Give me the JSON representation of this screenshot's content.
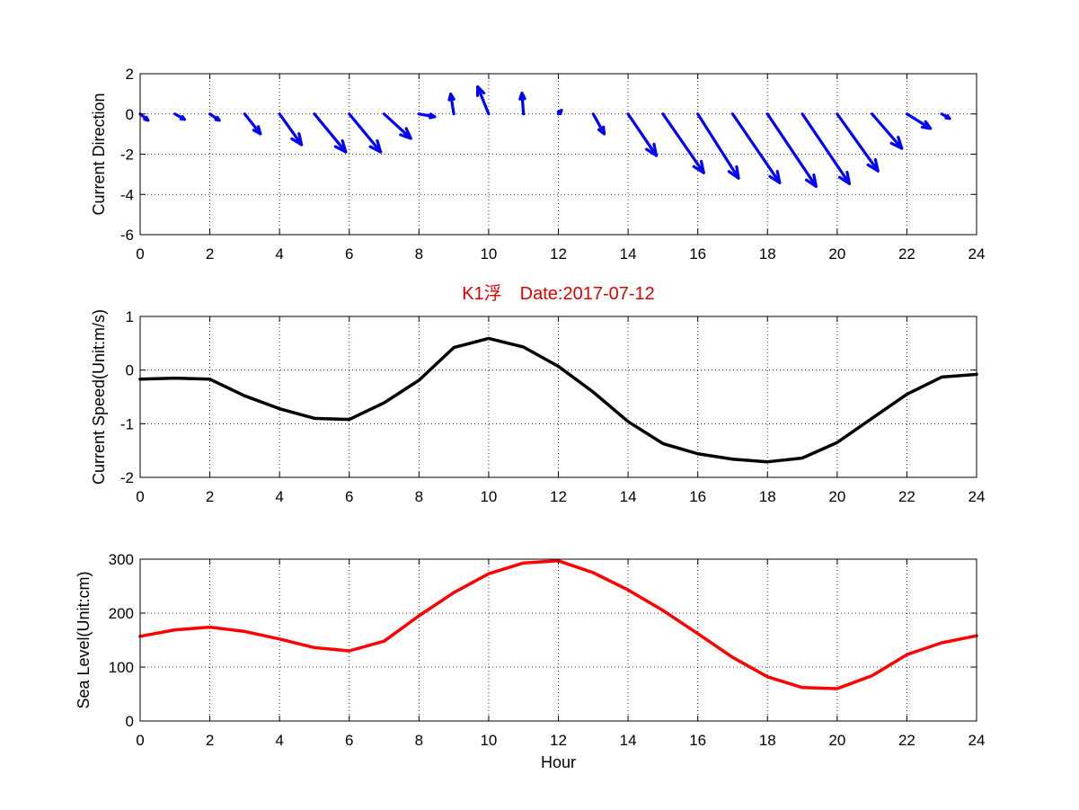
{
  "chart_data": [
    {
      "type": "quiver",
      "ylabel": "Current Direction",
      "xlim": [
        0,
        24
      ],
      "ylim": [
        -6,
        2
      ],
      "xticks": [
        0,
        2,
        4,
        6,
        8,
        10,
        12,
        14,
        16,
        18,
        20,
        22,
        24
      ],
      "yticks": [
        -6,
        -4,
        -2,
        0,
        2
      ],
      "grid": true,
      "color": "#0000ff",
      "vectors": [
        {
          "x": 0,
          "u": 0.25,
          "v": -0.35
        },
        {
          "x": 1,
          "u": 0.3,
          "v": -0.3
        },
        {
          "x": 2,
          "u": 0.3,
          "v": -0.35
        },
        {
          "x": 3,
          "u": 0.5,
          "v": -1.1
        },
        {
          "x": 4,
          "u": 0.7,
          "v": -1.7
        },
        {
          "x": 5,
          "u": 1.0,
          "v": -2.1
        },
        {
          "x": 6,
          "u": 1.0,
          "v": -2.1
        },
        {
          "x": 7,
          "u": 0.85,
          "v": -1.35
        },
        {
          "x": 8,
          "u": 0.5,
          "v": -0.15
        },
        {
          "x": 9,
          "u": -0.1,
          "v": 1.1
        },
        {
          "x": 10,
          "u": -0.35,
          "v": 1.5
        },
        {
          "x": 11,
          "u": -0.05,
          "v": 1.15
        },
        {
          "x": 12,
          "u": 0.1,
          "v": 0.2
        },
        {
          "x": 13,
          "u": 0.35,
          "v": -1.1
        },
        {
          "x": 14,
          "u": 0.9,
          "v": -2.3
        },
        {
          "x": 15,
          "u": 1.3,
          "v": -3.25
        },
        {
          "x": 16,
          "u": 1.3,
          "v": -3.55
        },
        {
          "x": 17,
          "u": 1.5,
          "v": -3.8
        },
        {
          "x": 18,
          "u": 1.55,
          "v": -4.0
        },
        {
          "x": 19,
          "u": 1.5,
          "v": -3.85
        },
        {
          "x": 20,
          "u": 1.3,
          "v": -3.15
        },
        {
          "x": 21,
          "u": 0.95,
          "v": -1.9
        },
        {
          "x": 22,
          "u": 0.75,
          "v": -0.8
        },
        {
          "x": 23,
          "u": 0.25,
          "v": -0.25
        }
      ]
    },
    {
      "type": "line",
      "title": "K1浮　Date:2017-07-12",
      "ylabel": "Current Speed(Unit:m/s)",
      "xlim": [
        0,
        24
      ],
      "ylim": [
        -2,
        1
      ],
      "xticks": [
        0,
        2,
        4,
        6,
        8,
        10,
        12,
        14,
        16,
        18,
        20,
        22,
        24
      ],
      "yticks": [
        -2,
        -1,
        0,
        1
      ],
      "grid": true,
      "series": [
        {
          "color": "#000000",
          "x": [
            0,
            1,
            2,
            3,
            4,
            5,
            6,
            7,
            8,
            9,
            10,
            11,
            12,
            13,
            14,
            15,
            16,
            17,
            18,
            19,
            20,
            21,
            22,
            23,
            24
          ],
          "y": [
            -0.17,
            -0.15,
            -0.17,
            -0.48,
            -0.72,
            -0.9,
            -0.92,
            -0.61,
            -0.19,
            0.42,
            0.59,
            0.43,
            0.07,
            -0.41,
            -0.96,
            -1.37,
            -1.56,
            -1.66,
            -1.71,
            -1.64,
            -1.35,
            -0.9,
            -0.45,
            -0.13,
            -0.08
          ]
        }
      ]
    },
    {
      "type": "line",
      "ylabel": "Sea Level(Unit:cm)",
      "xlabel": "Hour",
      "xlim": [
        0,
        24
      ],
      "ylim": [
        0,
        300
      ],
      "xticks": [
        0,
        2,
        4,
        6,
        8,
        10,
        12,
        14,
        16,
        18,
        20,
        22,
        24
      ],
      "yticks": [
        0,
        100,
        200,
        300
      ],
      "grid": true,
      "series": [
        {
          "color": "#ff0000",
          "x": [
            0,
            1,
            2,
            3,
            4,
            5,
            6,
            7,
            8,
            9,
            10,
            11,
            12,
            13,
            14,
            15,
            16,
            17,
            18,
            19,
            20,
            21,
            22,
            23,
            24
          ],
          "y": [
            157,
            169,
            174,
            166,
            152,
            136,
            130,
            148,
            195,
            238,
            273,
            293,
            297,
            275,
            243,
            205,
            162,
            118,
            82,
            62,
            60,
            84,
            123,
            145,
            158
          ]
        }
      ]
    }
  ]
}
